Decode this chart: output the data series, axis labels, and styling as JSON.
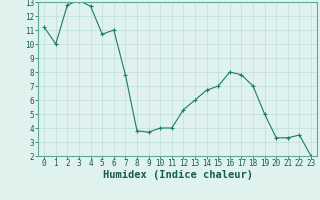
{
  "x": [
    0,
    1,
    2,
    3,
    4,
    5,
    6,
    7,
    8,
    9,
    10,
    11,
    12,
    13,
    14,
    15,
    16,
    17,
    18,
    19,
    20,
    21,
    22,
    23
  ],
  "y": [
    11.2,
    10.0,
    12.8,
    13.1,
    12.7,
    10.7,
    11.0,
    7.8,
    3.8,
    3.7,
    4.0,
    4.0,
    5.3,
    6.0,
    6.7,
    7.0,
    8.0,
    7.8,
    7.0,
    5.0,
    3.3,
    3.3,
    3.5,
    2.0
  ],
  "line_color": "#1a7a6e",
  "marker": "+",
  "markersize": 3,
  "linewidth": 0.8,
  "xlabel": "Humidex (Indice chaleur)",
  "xlim": [
    -0.5,
    23.5
  ],
  "ylim": [
    2,
    13
  ],
  "yticks": [
    2,
    3,
    4,
    5,
    6,
    7,
    8,
    9,
    10,
    11,
    12,
    13
  ],
  "xticks": [
    0,
    1,
    2,
    3,
    4,
    5,
    6,
    7,
    8,
    9,
    10,
    11,
    12,
    13,
    14,
    15,
    16,
    17,
    18,
    19,
    20,
    21,
    22,
    23
  ],
  "bg_color": "#dff2ee",
  "grid_color": "#c0ddd8",
  "tick_fontsize": 5.5,
  "xlabel_fontsize": 7.5
}
